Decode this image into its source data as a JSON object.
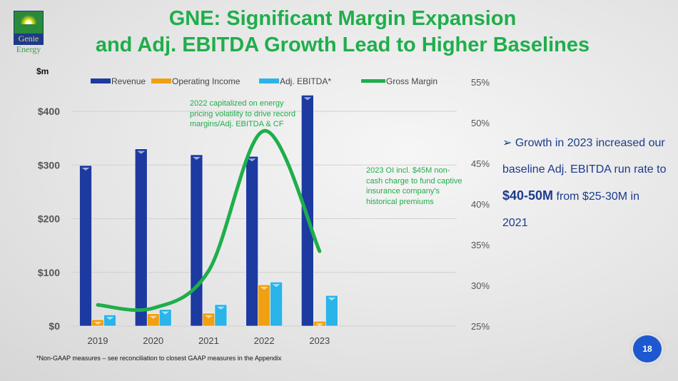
{
  "logo": {
    "name": "Genie",
    "sub": "Energy"
  },
  "title_line1": "GNE: Significant Margin Expansion",
  "title_line2": "and Adj. EBITDA Growth Lead to Higher Baselines",
  "unit_label": "$m",
  "annotation_2022": "2022 capitalized on energy pricing volatility to drive record margins/Adj. EBITDA & CF",
  "annotation_2023": "2023 OI incl. $45M non-cash charge to fund captive insurance company's historical premiums",
  "bullet": {
    "marker": "➢",
    "text1": "Growth in 2023 increased our baseline Adj. EBITDA run rate to ",
    "highlight": "$40-50M",
    "text2": " from $25-30M in 2021"
  },
  "footnote": "*Non-GAAP measures – see reconciliation to closest GAAP measures in the Appendix",
  "page_number": "18",
  "colors": {
    "revenue": "#1c3aa0",
    "operating_income": "#f0a010",
    "adj_ebitda": "#2ab4ea",
    "gross_margin": "#1fae4b"
  },
  "chart_data": {
    "type": "bar",
    "categories": [
      "2019",
      "2020",
      "2021",
      "2022",
      "2023"
    ],
    "series": [
      {
        "name": "Revenue",
        "axis": "left",
        "values": [
          299,
          330,
          319,
          316,
          430
        ]
      },
      {
        "name": "Operating Income",
        "axis": "left",
        "values": [
          12,
          23,
          24,
          77,
          9
        ]
      },
      {
        "name": "Adj. EBITDA*",
        "axis": "left",
        "values": [
          21,
          31,
          40,
          82,
          57
        ]
      },
      {
        "name": "Gross Margin",
        "type": "line",
        "axis": "right",
        "values": [
          27.6,
          27.2,
          31.8,
          49.0,
          34.2
        ]
      }
    ],
    "ylim": [
      0,
      450
    ],
    "yticks": [
      0,
      100,
      200,
      300,
      400
    ],
    "ytick_labels": [
      "$0",
      "$100",
      "$200",
      "$300",
      "$400"
    ],
    "y2lim": [
      25,
      55
    ],
    "y2ticks": [
      25,
      30,
      35,
      40,
      45,
      50,
      55
    ],
    "y2tick_labels": [
      "25%",
      "30%",
      "35%",
      "40%",
      "45%",
      "50%",
      "55%"
    ],
    "ylabel": "$m",
    "legend": "top",
    "grid": true
  }
}
